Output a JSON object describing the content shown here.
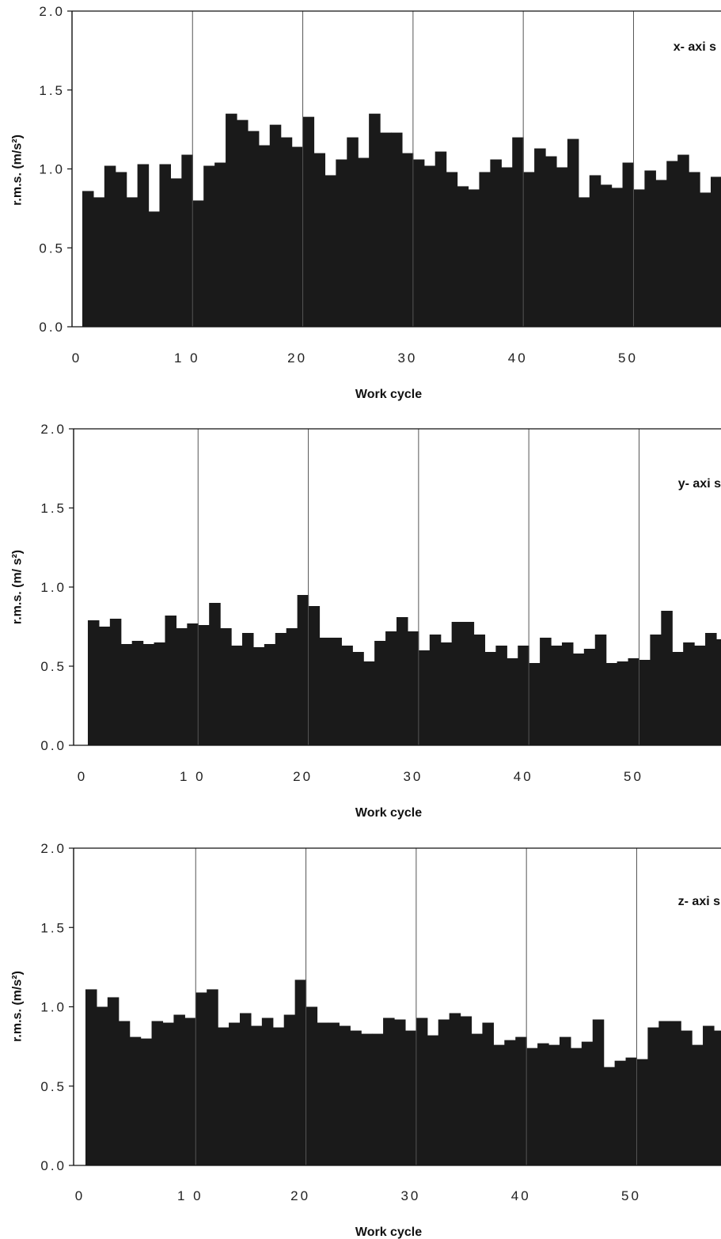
{
  "chart_data": [
    {
      "type": "bar",
      "panel_label": "x- axi s",
      "xlabel": "Work cycle",
      "ylabel": "r.m.s. (m/s²)",
      "ylim": [
        0,
        2
      ],
      "yticks": [
        "0.0",
        "0.5",
        "1.0",
        "1.5",
        "2.0"
      ],
      "xticks": [
        "0",
        "1 0",
        "20",
        "30",
        "40",
        "50"
      ],
      "xtick_values": [
        0,
        10,
        20,
        30,
        40,
        50
      ],
      "xlim": [
        0,
        58.5
      ],
      "vlines": [
        10,
        20,
        30,
        40,
        50
      ],
      "color": "#1a1a1a",
      "x": [
        1,
        2,
        3,
        4,
        5,
        6,
        7,
        8,
        9,
        10,
        11,
        12,
        13,
        14,
        15,
        16,
        17,
        18,
        19,
        20,
        21,
        22,
        23,
        24,
        25,
        26,
        27,
        28,
        29,
        30,
        31,
        32,
        33,
        34,
        35,
        36,
        37,
        38,
        39,
        40,
        41,
        42,
        43,
        44,
        45,
        46,
        47,
        48,
        49,
        50,
        51,
        52,
        53,
        54,
        55,
        56,
        57,
        58
      ],
      "values": [
        0.86,
        0.82,
        1.02,
        0.98,
        0.82,
        1.03,
        0.73,
        1.03,
        0.94,
        1.09,
        0.8,
        1.02,
        1.04,
        1.35,
        1.31,
        1.24,
        1.15,
        1.28,
        1.2,
        1.14,
        1.33,
        1.1,
        0.96,
        1.06,
        1.2,
        1.07,
        1.35,
        1.23,
        1.23,
        1.1,
        1.06,
        1.02,
        1.11,
        0.98,
        0.89,
        0.87,
        0.98,
        1.06,
        1.01,
        1.2,
        0.98,
        1.13,
        1.08,
        1.01,
        1.19,
        0.82,
        0.96,
        0.9,
        0.88,
        1.04,
        0.87,
        0.99,
        0.93,
        1.05,
        1.09,
        0.98,
        0.85,
        0.95
      ]
    },
    {
      "type": "bar",
      "panel_label": "y- axi s",
      "xlabel": "Work cycle",
      "ylabel": "r.m.s. (m/ s²)",
      "ylim": [
        0,
        2
      ],
      "yticks": [
        "0.0",
        "0.5",
        "1.0",
        "1.5",
        "2.0"
      ],
      "xticks": [
        "0",
        "1 0",
        "20",
        "30",
        "40",
        "50"
      ],
      "xtick_values": [
        0,
        10,
        20,
        30,
        40,
        50
      ],
      "xlim": [
        0,
        58.5
      ],
      "vlines": [
        10,
        20,
        30,
        40,
        50
      ],
      "color": "#1a1a1a",
      "x": [
        1,
        2,
        3,
        4,
        5,
        6,
        7,
        8,
        9,
        10,
        11,
        12,
        13,
        14,
        15,
        16,
        17,
        18,
        19,
        20,
        21,
        22,
        23,
        24,
        25,
        26,
        27,
        28,
        29,
        30,
        31,
        32,
        33,
        34,
        35,
        36,
        37,
        38,
        39,
        40,
        41,
        42,
        43,
        44,
        45,
        46,
        47,
        48,
        49,
        50,
        51,
        52,
        53,
        54,
        55,
        56,
        57,
        58
      ],
      "values": [
        0.79,
        0.75,
        0.8,
        0.64,
        0.66,
        0.64,
        0.65,
        0.82,
        0.74,
        0.77,
        0.76,
        0.9,
        0.74,
        0.63,
        0.71,
        0.62,
        0.64,
        0.71,
        0.74,
        0.95,
        0.88,
        0.68,
        0.68,
        0.63,
        0.59,
        0.53,
        0.66,
        0.72,
        0.81,
        0.72,
        0.6,
        0.7,
        0.65,
        0.78,
        0.78,
        0.7,
        0.59,
        0.63,
        0.55,
        0.63,
        0.52,
        0.68,
        0.63,
        0.65,
        0.58,
        0.61,
        0.7,
        0.52,
        0.53,
        0.55,
        0.54,
        0.7,
        0.85,
        0.59,
        0.65,
        0.63,
        0.71,
        0.67
      ]
    },
    {
      "type": "bar",
      "panel_label": "z- axi s",
      "xlabel": "Work cycle",
      "ylabel": "r.m.s. (m/s²)",
      "ylim": [
        0,
        2
      ],
      "yticks": [
        "0.0",
        "0.5",
        "1.0",
        "1.5",
        "2.0"
      ],
      "xticks": [
        "0",
        "1 0",
        "20",
        "30",
        "40",
        "50"
      ],
      "xtick_values": [
        0,
        10,
        20,
        30,
        40,
        50
      ],
      "xlim": [
        0,
        58.5
      ],
      "vlines": [
        10,
        20,
        30,
        40,
        50
      ],
      "color": "#1a1a1a",
      "x": [
        1,
        2,
        3,
        4,
        5,
        6,
        7,
        8,
        9,
        10,
        11,
        12,
        13,
        14,
        15,
        16,
        17,
        18,
        19,
        20,
        21,
        22,
        23,
        24,
        25,
        26,
        27,
        28,
        29,
        30,
        31,
        32,
        33,
        34,
        35,
        36,
        37,
        38,
        39,
        40,
        41,
        42,
        43,
        44,
        45,
        46,
        47,
        48,
        49,
        50,
        51,
        52,
        53,
        54,
        55,
        56,
        57,
        58
      ],
      "values": [
        1.11,
        1.0,
        1.06,
        0.91,
        0.81,
        0.8,
        0.91,
        0.9,
        0.95,
        0.93,
        1.09,
        1.11,
        0.87,
        0.9,
        0.96,
        0.88,
        0.93,
        0.87,
        0.95,
        1.17,
        1.0,
        0.9,
        0.9,
        0.88,
        0.85,
        0.83,
        0.83,
        0.93,
        0.92,
        0.85,
        0.93,
        0.82,
        0.92,
        0.96,
        0.94,
        0.83,
        0.9,
        0.76,
        0.79,
        0.81,
        0.74,
        0.77,
        0.76,
        0.81,
        0.74,
        0.78,
        0.92,
        0.62,
        0.66,
        0.68,
        0.67,
        0.87,
        0.91,
        0.91,
        0.85,
        0.76,
        0.88,
        0.85
      ]
    }
  ]
}
